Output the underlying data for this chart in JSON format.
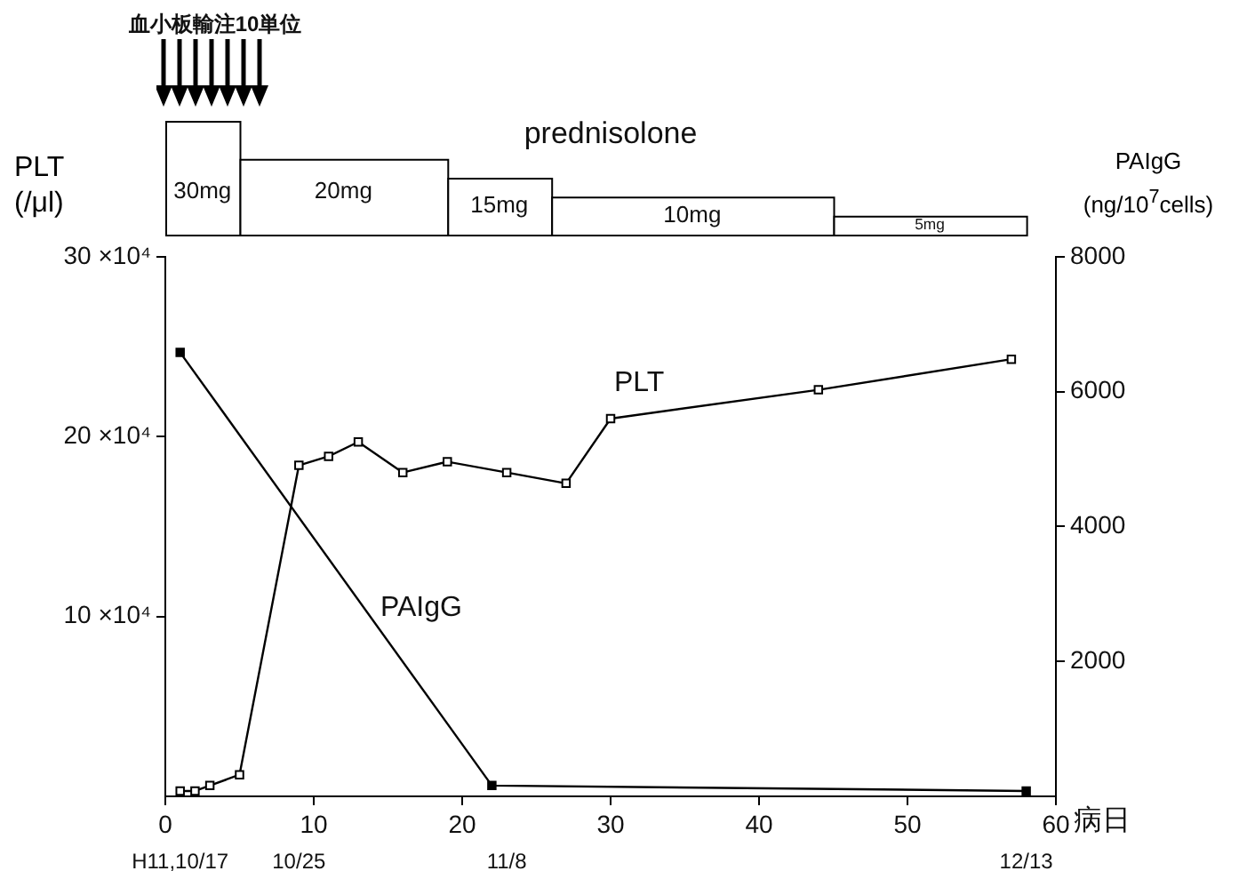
{
  "chart_data": [
    {
      "type": "bar",
      "title": "prednisolone",
      "x": [
        2.5,
        12,
        22.5,
        35.5,
        51.5
      ],
      "values": [
        30,
        20,
        15,
        10,
        5
      ],
      "value_labels": [
        "30mg",
        "20mg",
        "15mg",
        "10mg",
        "5mg"
      ],
      "color": "#000000",
      "xlim": [
        0,
        60
      ],
      "tick_labels": false,
      "annotations": [
        "血小板輸注10単位"
      ]
    },
    {
      "type": "line",
      "xlabel": "病日",
      "ylabel": "PLT (/μl)",
      "y2label": "PAIgG (ng/10$^{7}$cells)",
      "series": [
        {
          "name": "PLT",
          "color": "#000000",
          "x": [
            1,
            2,
            3,
            5,
            9,
            11,
            13,
            16,
            19,
            23,
            27,
            30,
            44,
            57
          ],
          "values": [
            3000,
            3000,
            6000,
            12000,
            184000,
            189000,
            197000,
            180000,
            186000,
            180000,
            174000,
            210000,
            226000,
            243000
          ]
        },
        {
          "name": "PAIgG",
          "color": "#000000",
          "axis": "y2",
          "x": [
            1,
            22,
            58
          ],
          "values": [
            6580,
            160,
            80
          ]
        }
      ],
      "xlim": [
        0,
        60
      ],
      "xticks": [
        0,
        10,
        20,
        30,
        40,
        50,
        60
      ],
      "ylim": [
        0,
        300000
      ],
      "yticks": [
        {
          "value": 100000,
          "label": "10 ×10⁴"
        },
        {
          "value": 200000,
          "label": "20 ×10⁴"
        },
        {
          "value": 300000,
          "label": "30 ×10⁴"
        }
      ],
      "y2lim": [
        0,
        8000
      ],
      "y2ticks": [
        2000,
        4000,
        6000,
        8000
      ],
      "x2lim": [
        "--10-16",
        "--12-15"
      ],
      "x2ticks": [
        {
          "value": "--10-17",
          "label": "H11,10/17"
        },
        {
          "value": "--10-25",
          "label": "10/25"
        },
        {
          "value": "--11-08",
          "label": "11/8"
        },
        {
          "value": "--12-13",
          "label": "12/13"
        }
      ],
      "marker": "square",
      "legend": false,
      "grid": false
    }
  ]
}
